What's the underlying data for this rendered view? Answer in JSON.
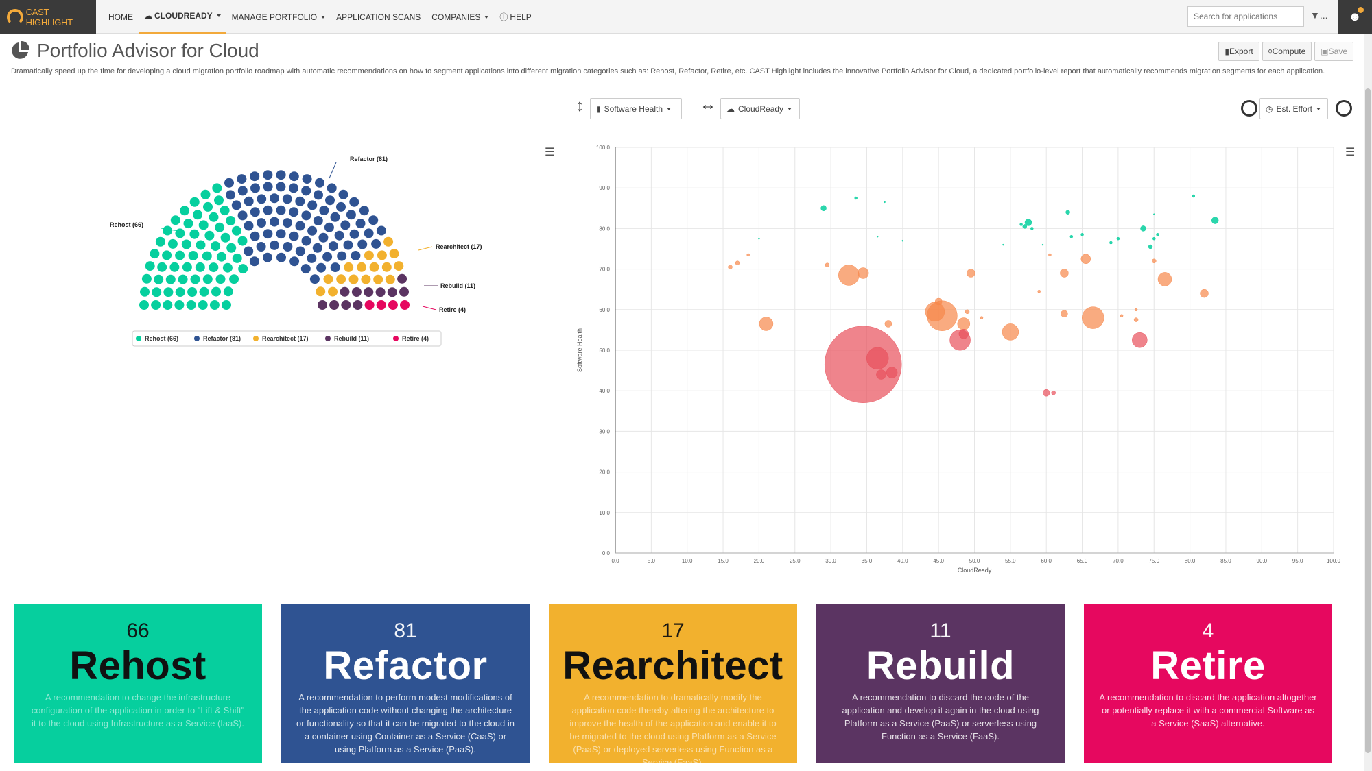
{
  "app": {
    "logo_text": "CAST HIGHLIGHT",
    "nav": [
      {
        "label": "HOME",
        "active": false,
        "dropdown": false,
        "icon": ""
      },
      {
        "label": "CLOUDREADY",
        "active": true,
        "dropdown": true,
        "icon": "cloud-icon"
      },
      {
        "label": "MANAGE PORTFOLIO",
        "active": false,
        "dropdown": true,
        "icon": ""
      },
      {
        "label": "APPLICATION SCANS",
        "active": false,
        "dropdown": false,
        "icon": ""
      },
      {
        "label": "COMPANIES",
        "active": false,
        "dropdown": true,
        "icon": ""
      },
      {
        "label": "HELP",
        "active": false,
        "dropdown": false,
        "icon": "question-circle-icon"
      }
    ],
    "search_placeholder": "Search for applications",
    "filter_label": "..."
  },
  "page": {
    "title": "Portfolio Advisor for Cloud",
    "description": "Dramatically speed up the time for developing a cloud migration portfolio roadmap with automatic recommendations on how to segment applications into different migration categories such as: Rehost, Refactor, Retire, etc. CAST Highlight includes the innovative Portfolio Advisor for Cloud, a dedicated portfolio-level report that automatically recommends migration segments for each application.",
    "buttons": {
      "export": "Export",
      "compute": "Compute",
      "save": "Save"
    }
  },
  "controls": {
    "y_axis": "Software Health",
    "x_axis": "CloudReady",
    "size_metric": "Est. Effort"
  },
  "colors": {
    "rehost": "#06cf9e",
    "refactor": "#2f5392",
    "rearchitect": "#f2b12e",
    "rebuild": "#5b3462",
    "retire": "#e6085f",
    "bubble_orange": "#f7874a",
    "bubble_red": "#e8505b"
  },
  "segments": [
    {
      "key": "rehost",
      "name": "Rehost",
      "count": 66,
      "label": "Rehost (66)",
      "desc": "A recommendation to change the infrastructure configuration of the application in order to \"Lift & Shift\" it to the cloud using Infrastructure as a Service (IaaS)."
    },
    {
      "key": "refactor",
      "name": "Refactor",
      "count": 81,
      "label": "Refactor (81)",
      "desc": "A recommendation to perform modest modifications of the application code without changing the architecture or functionality so that it can be migrated to the cloud in a container using Container as a Service (CaaS) or using Platform as a Service (PaaS)."
    },
    {
      "key": "rearchitect",
      "name": "Rearchitect",
      "count": 17,
      "label": "Rearchitect (17)",
      "desc": "A recommendation to dramatically modify the application code thereby altering the architecture to improve the health of the application and enable it to be migrated to the cloud using Platform as a Service (PaaS) or deployed serverless using Function as a Service (FaaS)."
    },
    {
      "key": "rebuild",
      "name": "Rebuild",
      "count": 11,
      "label": "Rebuild (11)",
      "desc": "A recommendation to discard the code of the application and develop it again in the cloud using Platform as a Service (PaaS) or serverless using Function as a Service (FaaS)."
    },
    {
      "key": "retire",
      "name": "Retire",
      "count": 4,
      "label": "Retire (4)",
      "desc": "A recommendation to discard the application altogether or potentially replace it with a commercial Software as a Service (SaaS) alternative."
    }
  ],
  "chart_data": [
    {
      "type": "parliament",
      "series": [
        {
          "name": "Rehost (66)",
          "value": 66
        },
        {
          "name": "Refactor (81)",
          "value": 81
        },
        {
          "name": "Rearchitect (17)",
          "value": 17
        },
        {
          "name": "Rebuild (11)",
          "value": 11
        },
        {
          "name": "Retire (4)",
          "value": 4
        }
      ],
      "legend_position": "bottom"
    },
    {
      "type": "scatter",
      "xlabel": "CloudReady",
      "ylabel": "Software Health",
      "xlim": [
        0,
        100
      ],
      "ylim": [
        0,
        100
      ],
      "xticks": [
        "0.0",
        "5.0",
        "10.0",
        "15.0",
        "20.0",
        "25.0",
        "30.0",
        "35.0",
        "40.0",
        "45.0",
        "50.0",
        "55.0",
        "60.0",
        "65.0",
        "70.0",
        "75.0",
        "80.0",
        "85.0",
        "90.0",
        "95.0",
        "100.0"
      ],
      "yticks": [
        "0.0",
        "10.0",
        "20.0",
        "30.0",
        "40.0",
        "50.0",
        "60.0",
        "70.0",
        "80.0",
        "90.0",
        "100.0"
      ],
      "grid": true,
      "points": [
        {
          "x": 34.5,
          "y": 46.5,
          "r": 56,
          "c": "red"
        },
        {
          "x": 36.5,
          "y": 48.0,
          "r": 16,
          "c": "red"
        },
        {
          "x": 38.5,
          "y": 44.5,
          "r": 8,
          "c": "red"
        },
        {
          "x": 37.0,
          "y": 44.0,
          "r": 7,
          "c": "red"
        },
        {
          "x": 48.0,
          "y": 52.5,
          "r": 15,
          "c": "red"
        },
        {
          "x": 48.5,
          "y": 54.0,
          "r": 7,
          "c": "red"
        },
        {
          "x": 73.0,
          "y": 52.5,
          "r": 11,
          "c": "red"
        },
        {
          "x": 60.0,
          "y": 39.5,
          "r": 5,
          "c": "red"
        },
        {
          "x": 61.0,
          "y": 39.5,
          "r": 3,
          "c": "red"
        },
        {
          "x": 45.5,
          "y": 58.5,
          "r": 22,
          "c": "orange"
        },
        {
          "x": 44.5,
          "y": 59.5,
          "r": 14,
          "c": "orange"
        },
        {
          "x": 45.0,
          "y": 62.0,
          "r": 5,
          "c": "orange"
        },
        {
          "x": 32.5,
          "y": 68.5,
          "r": 15,
          "c": "orange"
        },
        {
          "x": 34.5,
          "y": 69.0,
          "r": 8,
          "c": "orange"
        },
        {
          "x": 21.0,
          "y": 56.5,
          "r": 10,
          "c": "orange"
        },
        {
          "x": 38.0,
          "y": 56.5,
          "r": 5,
          "c": "orange"
        },
        {
          "x": 48.5,
          "y": 56.5,
          "r": 9,
          "c": "orange"
        },
        {
          "x": 55.0,
          "y": 54.5,
          "r": 12,
          "c": "orange"
        },
        {
          "x": 66.5,
          "y": 58.0,
          "r": 16,
          "c": "orange"
        },
        {
          "x": 62.5,
          "y": 59.0,
          "r": 5,
          "c": "orange"
        },
        {
          "x": 49.5,
          "y": 69.0,
          "r": 6,
          "c": "orange"
        },
        {
          "x": 62.5,
          "y": 69.0,
          "r": 6,
          "c": "orange"
        },
        {
          "x": 65.5,
          "y": 72.5,
          "r": 7,
          "c": "orange"
        },
        {
          "x": 76.5,
          "y": 67.5,
          "r": 10,
          "c": "orange"
        },
        {
          "x": 82.0,
          "y": 64.0,
          "r": 6,
          "c": "orange"
        },
        {
          "x": 29.5,
          "y": 71.0,
          "r": 3,
          "c": "orange"
        },
        {
          "x": 17.0,
          "y": 71.5,
          "r": 3,
          "c": "orange"
        },
        {
          "x": 16.0,
          "y": 70.5,
          "r": 3,
          "c": "orange"
        },
        {
          "x": 18.5,
          "y": 73.5,
          "r": 2,
          "c": "orange"
        },
        {
          "x": 49.0,
          "y": 59.5,
          "r": 3,
          "c": "orange"
        },
        {
          "x": 51.0,
          "y": 58.0,
          "r": 2,
          "c": "orange"
        },
        {
          "x": 59.0,
          "y": 64.5,
          "r": 2,
          "c": "orange"
        },
        {
          "x": 60.5,
          "y": 73.5,
          "r": 2,
          "c": "orange"
        },
        {
          "x": 72.5,
          "y": 60.0,
          "r": 2,
          "c": "orange"
        },
        {
          "x": 70.5,
          "y": 58.5,
          "r": 2,
          "c": "orange"
        },
        {
          "x": 72.5,
          "y": 57.5,
          "r": 3,
          "c": "orange"
        },
        {
          "x": 75.0,
          "y": 72.0,
          "r": 3,
          "c": "orange"
        },
        {
          "x": 29.0,
          "y": 85.0,
          "r": 4,
          "c": "teal"
        },
        {
          "x": 33.5,
          "y": 87.5,
          "r": 2,
          "c": "teal"
        },
        {
          "x": 37.5,
          "y": 86.5,
          "r": 1,
          "c": "teal"
        },
        {
          "x": 57.5,
          "y": 81.5,
          "r": 5,
          "c": "teal"
        },
        {
          "x": 57.0,
          "y": 80.5,
          "r": 3,
          "c": "teal"
        },
        {
          "x": 56.5,
          "y": 81.0,
          "r": 2,
          "c": "teal"
        },
        {
          "x": 58.0,
          "y": 80.0,
          "r": 2,
          "c": "teal"
        },
        {
          "x": 63.0,
          "y": 84.0,
          "r": 3,
          "c": "teal"
        },
        {
          "x": 63.5,
          "y": 78.0,
          "r": 2,
          "c": "teal"
        },
        {
          "x": 65.0,
          "y": 78.5,
          "r": 2,
          "c": "teal"
        },
        {
          "x": 73.5,
          "y": 80.0,
          "r": 4,
          "c": "teal"
        },
        {
          "x": 83.5,
          "y": 82.0,
          "r": 5,
          "c": "teal"
        },
        {
          "x": 80.5,
          "y": 88.0,
          "r": 2,
          "c": "teal"
        },
        {
          "x": 75.5,
          "y": 78.5,
          "r": 2,
          "c": "teal"
        },
        {
          "x": 75.0,
          "y": 77.5,
          "r": 2,
          "c": "teal"
        },
        {
          "x": 74.5,
          "y": 75.5,
          "r": 3,
          "c": "teal"
        },
        {
          "x": 70.0,
          "y": 77.5,
          "r": 2,
          "c": "teal"
        },
        {
          "x": 69.0,
          "y": 76.5,
          "r": 2,
          "c": "teal"
        },
        {
          "x": 59.5,
          "y": 76.0,
          "r": 1,
          "c": "teal"
        },
        {
          "x": 54.0,
          "y": 76.0,
          "r": 1,
          "c": "teal"
        },
        {
          "x": 40.0,
          "y": 77.0,
          "r": 1,
          "c": "teal"
        },
        {
          "x": 36.5,
          "y": 78.0,
          "r": 1,
          "c": "teal"
        },
        {
          "x": 20.0,
          "y": 77.5,
          "r": 1,
          "c": "teal"
        },
        {
          "x": 75.0,
          "y": 83.5,
          "r": 1,
          "c": "teal"
        }
      ]
    }
  ]
}
